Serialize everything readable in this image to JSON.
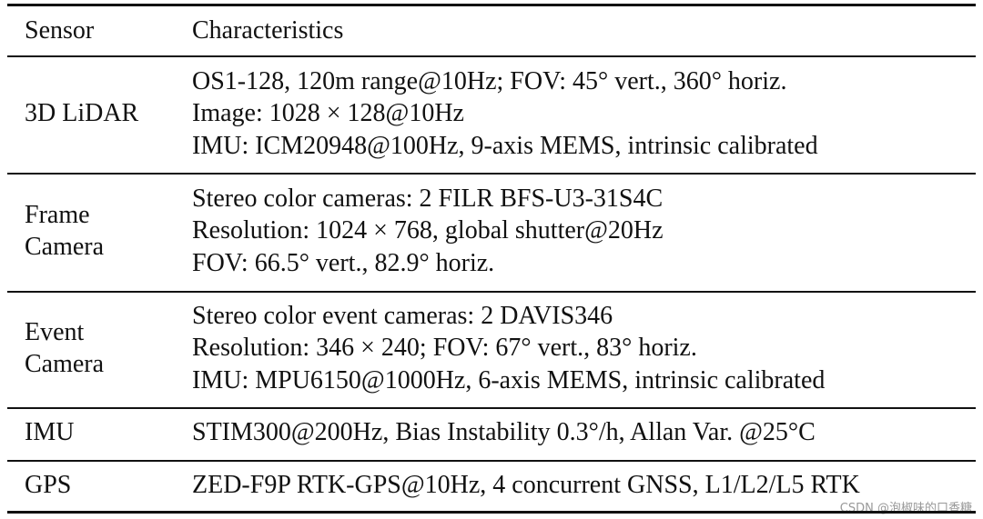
{
  "table": {
    "header": [
      "Sensor",
      "Characteristics"
    ],
    "rows": [
      {
        "sensor": [
          "3D LiDAR"
        ],
        "lines": [
          "OS1-128, 120m range@10Hz; FOV: 45° vert., 360° horiz.",
          "Image: 1028 × 128@10Hz",
          "IMU: ICM20948@100Hz, 9-axis MEMS, intrinsic calibrated"
        ]
      },
      {
        "sensor": [
          "Frame",
          "Camera"
        ],
        "lines": [
          "Stereo color cameras: 2 FILR BFS-U3-31S4C",
          "Resolution: 1024 × 768, global shutter@20Hz",
          "FOV: 66.5° vert., 82.9° horiz."
        ]
      },
      {
        "sensor": [
          "Event",
          "Camera"
        ],
        "lines": [
          "Stereo color event cameras: 2 DAVIS346",
          "Resolution: 346 × 240;  FOV: 67° vert., 83° horiz.",
          "IMU: MPU6150@1000Hz, 6-axis MEMS, intrinsic calibrated"
        ]
      },
      {
        "sensor": [
          "IMU"
        ],
        "lines": [
          "STIM300@200Hz, Bias Instability 0.3°/h, Allan Var. @25°C"
        ]
      },
      {
        "sensor": [
          "GPS"
        ],
        "lines": [
          "ZED-F9P RTK-GPS@10Hz, 4 concurrent GNSS, L1/L2/L5 RTK"
        ]
      }
    ]
  },
  "watermark": "CSDN @泡椒味的口香糖"
}
